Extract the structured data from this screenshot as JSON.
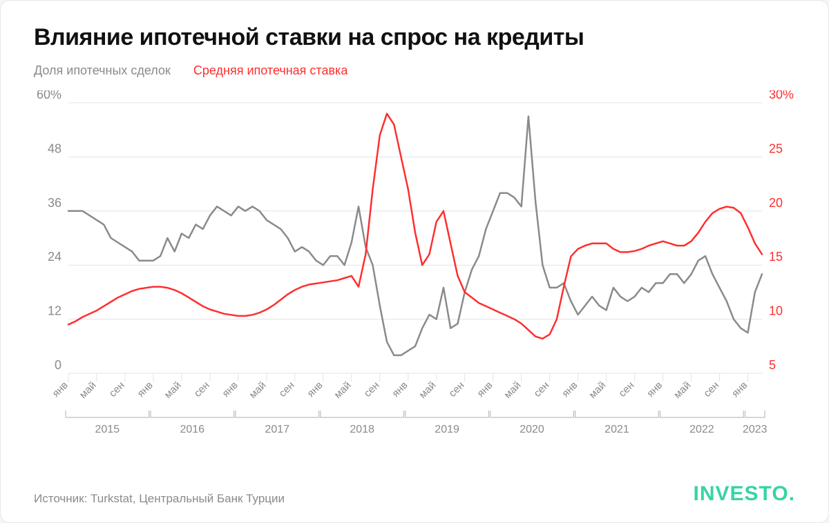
{
  "title": "Влияние ипотечной ставки на спрос на кредиты",
  "legend": {
    "series1": {
      "label": "Доля ипотечных сделок",
      "color": "#8a8a8a"
    },
    "series2": {
      "label": "Средняя ипотечная ставка",
      "color": "#ff2e2e"
    }
  },
  "source": "Источник: Turkstat, Центральный Банк Турции",
  "brand": {
    "text": "INVESTO",
    "dot": ".",
    "color": "#37d3a5"
  },
  "chart": {
    "type": "dual-axis-line",
    "background_color": "#ffffff",
    "grid_color": "#e3e3e3",
    "axis_left": {
      "color": "#8a8a8a",
      "min": 0,
      "max": 60,
      "ticks": [
        0,
        12,
        24,
        36,
        48,
        60
      ],
      "suffix_top": "%"
    },
    "axis_right": {
      "color": "#ff2e2e",
      "min": 5,
      "max": 30,
      "ticks": [
        5,
        10,
        15,
        20,
        25,
        30
      ],
      "suffix_top": "%"
    },
    "line_width": 2.5,
    "xticks": {
      "labels_per_year": [
        "янв",
        "май",
        "сен"
      ],
      "rotation": -45,
      "color": "#8a8a8a"
    },
    "years": [
      {
        "label": "2015",
        "start": 0,
        "end": 11
      },
      {
        "label": "2016",
        "start": 12,
        "end": 23
      },
      {
        "label": "2017",
        "start": 24,
        "end": 35
      },
      {
        "label": "2018",
        "start": 36,
        "end": 47
      },
      {
        "label": "2019",
        "start": 48,
        "end": 59
      },
      {
        "label": "2020",
        "start": 60,
        "end": 71
      },
      {
        "label": "2021",
        "start": 72,
        "end": 83
      },
      {
        "label": "2022",
        "start": 84,
        "end": 95
      },
      {
        "label": "2023",
        "start": 96,
        "end": 98
      }
    ],
    "series1_values": [
      36,
      36,
      36,
      35,
      34,
      33,
      30,
      29,
      28,
      27,
      25,
      25,
      25,
      26,
      30,
      27,
      31,
      30,
      33,
      32,
      35,
      37,
      36,
      35,
      37,
      36,
      37,
      36,
      34,
      33,
      32,
      30,
      27,
      28,
      27,
      25,
      24,
      26,
      26,
      24,
      29,
      37,
      28,
      24,
      15,
      7,
      4,
      4,
      5,
      6,
      10,
      13,
      12,
      19,
      10,
      11,
      18,
      23,
      26,
      32,
      36,
      40,
      40,
      39,
      37,
      57,
      38,
      24,
      19,
      19,
      20,
      16,
      13,
      15,
      17,
      15,
      14,
      19,
      17,
      16,
      17,
      19,
      18,
      20,
      20,
      22,
      22,
      20,
      22,
      25,
      26,
      22,
      19,
      16,
      12,
      10,
      9,
      18,
      22
    ],
    "series2_values": [
      9.5,
      9.8,
      10.2,
      10.5,
      10.8,
      11.2,
      11.6,
      12.0,
      12.3,
      12.6,
      12.8,
      12.9,
      13.0,
      13.0,
      12.9,
      12.7,
      12.4,
      12.0,
      11.6,
      11.2,
      10.9,
      10.7,
      10.5,
      10.4,
      10.3,
      10.3,
      10.4,
      10.6,
      10.9,
      11.3,
      11.8,
      12.3,
      12.7,
      13.0,
      13.2,
      13.3,
      13.4,
      13.5,
      13.6,
      13.8,
      14.0,
      13.0,
      16.0,
      22.0,
      27.0,
      29.0,
      28.0,
      25.0,
      22.0,
      18.0,
      15.0,
      16.0,
      19.0,
      20.0,
      17.0,
      14.0,
      12.5,
      12.0,
      11.5,
      11.2,
      10.9,
      10.6,
      10.3,
      10.0,
      9.6,
      9.0,
      8.4,
      8.2,
      8.6,
      10.0,
      13.0,
      15.8,
      16.5,
      16.8,
      17.0,
      17.0,
      17.0,
      16.5,
      16.2,
      16.2,
      16.3,
      16.5,
      16.8,
      17.0,
      17.2,
      17.0,
      16.8,
      16.8,
      17.2,
      18.0,
      19.0,
      19.8,
      20.2,
      20.4,
      20.3,
      19.8,
      18.5,
      17.0,
      16.0
    ]
  }
}
